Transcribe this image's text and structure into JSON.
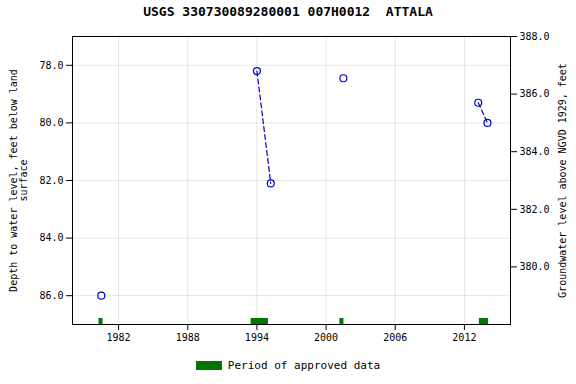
{
  "chart_data": {
    "type": "scatter",
    "title": "USGS 330730089280001 007H0012  ATTALA",
    "x": [
      1980.5,
      1994.0,
      1995.2,
      2001.5,
      2013.2,
      2014.0
    ],
    "series": [
      {
        "type": "scatter",
        "marker": "circle",
        "color": "#0000cc",
        "values": [
          86.0,
          78.2,
          82.1,
          78.45,
          79.3,
          80.0
        ]
      },
      {
        "type": "line",
        "line_style": "dashed",
        "color": "#0000cc",
        "values": [
          null,
          78.2,
          82.1,
          null,
          79.3,
          80.0
        ]
      }
    ],
    "xlim": [
      1978,
      2016
    ],
    "xticks": [
      1982,
      1988,
      1994,
      2000,
      2006,
      2012
    ],
    "ylim": [
      87.0,
      77.0
    ],
    "yticks": [
      {
        "value": 78.0,
        "label": "78.0"
      },
      {
        "value": 80.0,
        "label": "80.0"
      },
      {
        "value": 82.0,
        "label": "82.0"
      },
      {
        "value": 84.0,
        "label": "84.0"
      },
      {
        "value": 86.0,
        "label": "86.0"
      }
    ],
    "ylabel": "Depth to water level, feet below land\nsurface",
    "y2lim": [
      378.0,
      388.0
    ],
    "y2ticks": [
      {
        "value": 380.0,
        "label": "380.0"
      },
      {
        "value": 382.0,
        "label": "382.0"
      },
      {
        "value": 384.0,
        "label": "384.0"
      },
      {
        "value": 386.0,
        "label": "386.0"
      },
      {
        "value": 388.0,
        "label": "388.0"
      }
    ],
    "y2label": "Groundwater level above NGVD 1929, feet",
    "grid": true,
    "legend": "bottom",
    "periods": {
      "name": "Period of approved data",
      "color": "#007700",
      "ranges": [
        {
          "start": 1980.3,
          "end": 1980.65
        },
        {
          "start": 1993.5,
          "end": 1995.0
        },
        {
          "start": 2001.2,
          "end": 2001.55
        },
        {
          "start": 2013.3,
          "end": 2014.1
        }
      ]
    }
  }
}
